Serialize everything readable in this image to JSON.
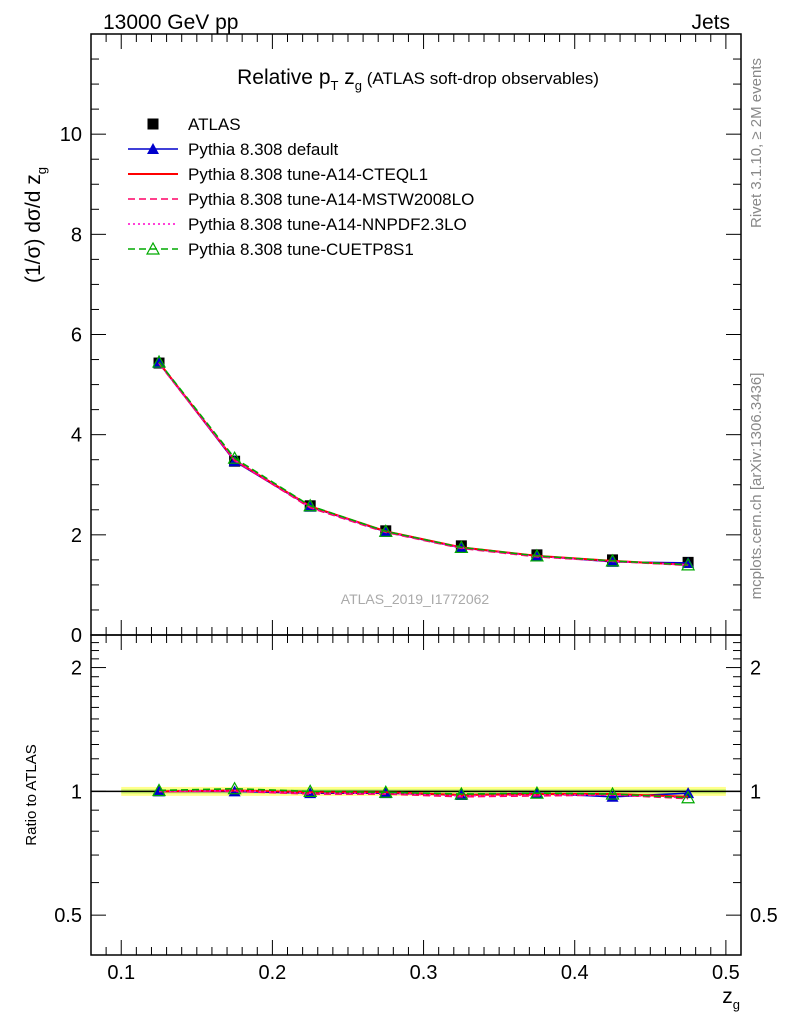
{
  "header": {
    "left": "13000 GeV pp",
    "right": "Jets"
  },
  "side_labels": {
    "rivet": "Rivet 3.1.10, ≥ 2M events",
    "mcplots": "mcplots.cern.ch [arXiv:1306.3436]"
  },
  "watermark": "ATLAS_2019_I1772062",
  "chart_data": [
    {
      "type": "line",
      "title_main": "Relative p",
      "title_sub": "T",
      "title_var": " z",
      "title_var_sub": "g",
      "title_rest": " (ATLAS soft-drop observables)",
      "ylabel": "(1/σ) dσ/d z",
      "ylabel_sub": "g",
      "xlim": [
        0.08,
        0.51
      ],
      "ylim": [
        0,
        12
      ],
      "y_ticks": [
        0,
        2,
        4,
        6,
        8,
        10
      ],
      "x": [
        0.125,
        0.175,
        0.225,
        0.275,
        0.325,
        0.375,
        0.425,
        0.475
      ],
      "legend_position": "top-left",
      "series": [
        {
          "name": "ATLAS",
          "color": "#000000",
          "style": "marker-square",
          "values": [
            5.43,
            3.47,
            2.58,
            2.08,
            1.78,
            1.6,
            1.5,
            1.45
          ]
        },
        {
          "name": "Pythia 8.308 default",
          "color": "#0000cc",
          "style": "solid-triangle",
          "values": [
            5.43,
            3.47,
            2.56,
            2.06,
            1.74,
            1.58,
            1.46,
            1.44
          ]
        },
        {
          "name": "Pythia 8.308 tune-A14-CTEQL1",
          "color": "#ff0000",
          "style": "solid",
          "values": [
            5.44,
            3.49,
            2.57,
            2.07,
            1.75,
            1.58,
            1.48,
            1.4
          ]
        },
        {
          "name": "Pythia 8.308 tune-A14-MSTW2008LO",
          "color": "#ff0066",
          "style": "dashed",
          "values": [
            5.42,
            3.48,
            2.54,
            2.05,
            1.73,
            1.56,
            1.47,
            1.39
          ]
        },
        {
          "name": "Pythia 8.308 tune-A14-NNPDF2.3LO",
          "color": "#ff00cc",
          "style": "dotted",
          "values": [
            5.43,
            3.49,
            2.56,
            2.06,
            1.74,
            1.57,
            1.47,
            1.4
          ]
        },
        {
          "name": "Pythia 8.308 tune-CUETP8S1",
          "color": "#00aa00",
          "style": "dashed-open-triangle",
          "values": [
            5.45,
            3.53,
            2.58,
            2.07,
            1.75,
            1.58,
            1.48,
            1.4
          ]
        }
      ]
    },
    {
      "type": "line",
      "ylabel": "Ratio to ATLAS",
      "xlabel": "z",
      "xlabel_sub": "g",
      "xlim": [
        0.08,
        0.51
      ],
      "ylim": [
        0.4,
        2.4
      ],
      "y_ticks": [
        0.5,
        1,
        2
      ],
      "y_tick_labels": [
        "0.5",
        "1",
        "2"
      ],
      "x_ticks": [
        0.1,
        0.2,
        0.3,
        0.4,
        0.5
      ],
      "x_tick_labels": [
        "0.1",
        "0.2",
        "0.3",
        "0.4",
        "0.5"
      ],
      "x": [
        0.125,
        0.175,
        0.225,
        0.275,
        0.325,
        0.375,
        0.425,
        0.475
      ],
      "band_color": "#ffff66",
      "band_inner_color": "#aaee55",
      "series": [
        {
          "name": "Pythia 8.308 default",
          "color": "#0000cc",
          "style": "solid-triangle",
          "values": [
            1.0,
            1.0,
            0.99,
            0.99,
            0.98,
            0.99,
            0.97,
            0.99
          ]
        },
        {
          "name": "Pythia 8.308 tune-A14-CTEQL1",
          "color": "#ff0000",
          "style": "solid",
          "values": [
            1.0,
            1.005,
            0.995,
            0.995,
            0.98,
            0.985,
            0.985,
            0.97
          ]
        },
        {
          "name": "Pythia 8.308 tune-A14-MSTW2008LO",
          "color": "#ff0066",
          "style": "dashed",
          "values": [
            1.0,
            1.0,
            0.985,
            0.985,
            0.97,
            0.975,
            0.98,
            0.96
          ]
        },
        {
          "name": "Pythia 8.308 tune-A14-NNPDF2.3LO",
          "color": "#ff00cc",
          "style": "dotted",
          "values": [
            1.0,
            1.005,
            0.99,
            0.99,
            0.975,
            0.98,
            0.98,
            0.965
          ]
        },
        {
          "name": "Pythia 8.308 tune-CUETP8S1",
          "color": "#00aa00",
          "style": "dashed-open-triangle",
          "values": [
            1.005,
            1.015,
            1.0,
            0.995,
            0.985,
            0.99,
            0.985,
            0.965
          ]
        }
      ]
    }
  ]
}
